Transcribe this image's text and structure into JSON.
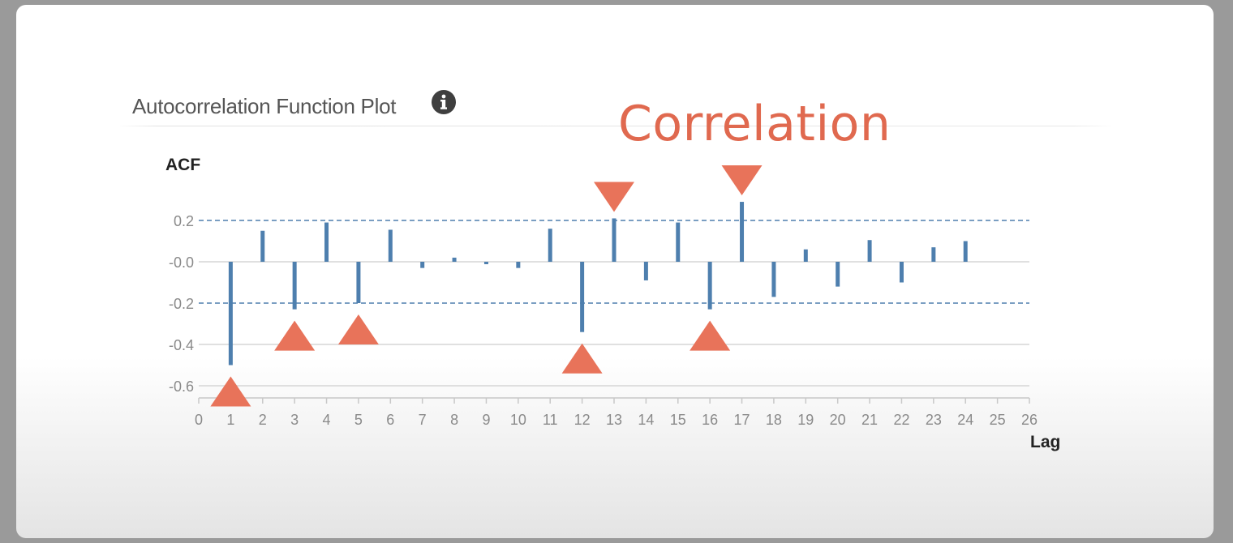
{
  "panel": {
    "title": "Autocorrelation Function Plot",
    "info_icon": "info-icon",
    "annotation": "Correlation"
  },
  "colors": {
    "bar": "#4e7fae",
    "marker": "#e8735a",
    "gridline": "#d6d6d6",
    "confidence": "#4e7fae",
    "annotation": "#e0694f"
  },
  "chart_data": {
    "type": "bar",
    "xlabel": "Lag",
    "ylabel": "ACF",
    "xlim": [
      0,
      26
    ],
    "ylim": [
      -0.66,
      0.2
    ],
    "yticks": [
      0.2,
      0.0,
      -0.2,
      -0.4,
      -0.6
    ],
    "ytick_labels": [
      "0.2",
      "-0.0",
      "-0.2",
      "-0.4",
      "-0.6"
    ],
    "xticks": [
      0,
      1,
      2,
      3,
      4,
      5,
      6,
      7,
      8,
      9,
      10,
      11,
      12,
      13,
      14,
      15,
      16,
      17,
      18,
      19,
      20,
      21,
      22,
      23,
      24,
      25,
      26
    ],
    "confidence_band": [
      -0.2,
      0.2
    ],
    "grid": true,
    "series": [
      {
        "lags": [
          1,
          2,
          3,
          4,
          5,
          6,
          7,
          8,
          9,
          10,
          11,
          12,
          13,
          14,
          15,
          16,
          17,
          18,
          19,
          20,
          21,
          22,
          23,
          24
        ],
        "values": [
          -0.5,
          0.15,
          -0.23,
          0.19,
          -0.2,
          0.155,
          -0.03,
          0.02,
          -0.01,
          -0.03,
          0.16,
          -0.34,
          0.21,
          -0.09,
          0.19,
          -0.23,
          0.29,
          -0.17,
          0.06,
          -0.12,
          0.105,
          -0.1,
          0.07,
          0.1
        ]
      }
    ],
    "markers": [
      {
        "lag": 1,
        "direction": "up"
      },
      {
        "lag": 3,
        "direction": "up"
      },
      {
        "lag": 5,
        "direction": "up"
      },
      {
        "lag": 12,
        "direction": "up"
      },
      {
        "lag": 13,
        "direction": "down"
      },
      {
        "lag": 16,
        "direction": "up"
      },
      {
        "lag": 17,
        "direction": "down"
      }
    ]
  }
}
